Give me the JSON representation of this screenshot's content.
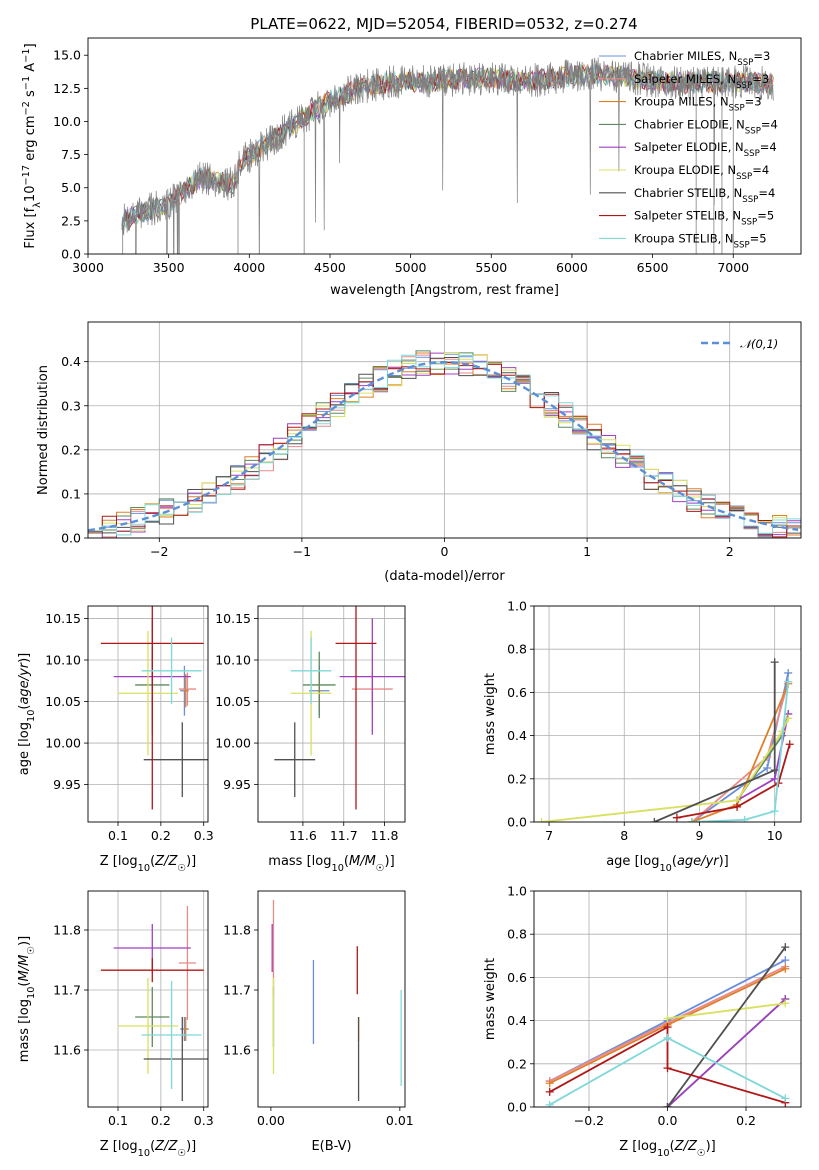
{
  "figure": {
    "title": "PLATE=0622, MJD=52054, FIBERID=0532, z=0.274"
  },
  "legend": {
    "models": [
      {
        "name": "Chabrier MILES, N_SSP=3",
        "base": "Chabrier MILES, N",
        "sub": "SSP",
        "tail": "=3",
        "color": "#6a8fd8"
      },
      {
        "name": "Salpeter MILES, N_SSP=3",
        "base": "Salpeter MILES, N",
        "sub": "SSP",
        "tail": "=3",
        "color": "#e88a8a"
      },
      {
        "name": "Kroupa MILES, N_SSP=3",
        "base": "Kroupa MILES, N",
        "sub": "SSP",
        "tail": "=3",
        "color": "#e07f2a"
      },
      {
        "name": "Chabrier ELODIE, N_SSP=4",
        "base": "Chabrier ELODIE, N",
        "sub": "SSP",
        "tail": "=4",
        "color": "#5e8a5e"
      },
      {
        "name": "Salpeter ELODIE, N_SSP=4",
        "base": "Salpeter ELODIE, N",
        "sub": "SSP",
        "tail": "=4",
        "color": "#a040c0"
      },
      {
        "name": "Kroupa ELODIE, N_SSP=4",
        "base": "Kroupa ELODIE, N",
        "sub": "SSP",
        "tail": "=4",
        "color": "#d8e060"
      },
      {
        "name": "Chabrier STELIB, N_SSP=4",
        "base": "Chabrier STELIB, N",
        "sub": "SSP",
        "tail": "=4",
        "color": "#505050"
      },
      {
        "name": "Salpeter STELIB, N_SSP=5",
        "base": "Salpeter STELIB, N",
        "sub": "SSP",
        "tail": "=5",
        "color": "#b01818"
      },
      {
        "name": "Kroupa STELIB, N_SSP=5",
        "base": "Kroupa STELIB, N",
        "sub": "SSP",
        "tail": "=5",
        "color": "#80d8d8"
      }
    ],
    "hist_legend": "𝒩(0,1)"
  },
  "chart_data": [
    {
      "id": "spectrum",
      "type": "line",
      "title": "PLATE=0622, MJD=52054, FIBERID=0532, z=0.274",
      "xlabel": "wavelength [Angstrom, rest frame]",
      "ylabel": "Flux [f_λ 10^-17 erg cm^-2 s^-1 A^-1]",
      "xlim": [
        3000,
        7420
      ],
      "ylim": [
        0,
        16.3
      ],
      "xticks": [
        3000,
        3500,
        4000,
        4500,
        5000,
        5500,
        6000,
        6500,
        7000
      ],
      "yticks": [
        0.0,
        2.5,
        5.0,
        7.5,
        10.0,
        12.5,
        15.0
      ],
      "grid": false,
      "legend_position": "upper right",
      "continuum": {
        "x": [
          3210,
          3300,
          3500,
          3700,
          3900,
          3950,
          4100,
          4300,
          4500,
          4700,
          4900,
          5100,
          5300,
          5500,
          5700,
          5900,
          6100,
          6300,
          6500,
          6700,
          6900,
          7100,
          7250
        ],
        "y": [
          2.5,
          3.0,
          3.8,
          5.8,
          5.2,
          7.0,
          8.2,
          10.0,
          11.6,
          12.6,
          13.0,
          13.0,
          13.2,
          13.3,
          13.0,
          13.3,
          13.6,
          13.4,
          13.1,
          12.9,
          13.0,
          13.0,
          12.8
        ]
      }
    },
    {
      "id": "residual-histogram",
      "type": "line",
      "xlabel": "(data-model)/error",
      "ylabel": "Normed distribution",
      "xlim": [
        -2.5,
        2.5
      ],
      "ylim": [
        0,
        0.49
      ],
      "xticks": [
        -2,
        -1,
        0,
        1,
        2
      ],
      "yticks": [
        0.0,
        0.1,
        0.2,
        0.3,
        0.4
      ],
      "grid": true,
      "legend_position": "upper right",
      "reference_curve": "normal(0,1)",
      "bin_width": 0.1
    },
    {
      "id": "age-vs-Z",
      "type": "scatter",
      "xlabel": "Z [log10(Z/Z☉)]",
      "ylabel": "age [log10(age/yr)]",
      "xlim": [
        0.03,
        0.31
      ],
      "ylim": [
        9.905,
        10.165
      ],
      "xticks": [
        0.1,
        0.2,
        0.3
      ],
      "yticks": [
        9.95,
        10.0,
        10.05,
        10.1,
        10.15
      ],
      "grid": true,
      "points": [
        {
          "model": 0,
          "x": 0.255,
          "y": 10.063,
          "xerr": 0.01,
          "yerr": 0.03
        },
        {
          "model": 1,
          "x": 0.262,
          "y": 10.065,
          "xerr": 0.02,
          "yerr": 0.02
        },
        {
          "model": 2,
          "x": 0.258,
          "y": 10.063,
          "xerr": 0.005,
          "yerr": 0.02
        },
        {
          "model": 3,
          "x": 0.18,
          "y": 10.07,
          "xerr": 0.04,
          "yerr": 0.04
        },
        {
          "model": 4,
          "x": 0.18,
          "y": 10.08,
          "xerr": 0.09,
          "yerr": 0.07
        },
        {
          "model": 5,
          "x": 0.17,
          "y": 10.06,
          "xerr": 0.07,
          "yerr": 0.075
        },
        {
          "model": 6,
          "x": 0.25,
          "y": 9.98,
          "xerr": 0.09,
          "yerr": 0.045
        },
        {
          "model": 7,
          "x": 0.18,
          "y": 10.12,
          "xerr": 0.12,
          "yerr": 0.2
        },
        {
          "model": 8,
          "x": 0.225,
          "y": 10.087,
          "xerr": 0.07,
          "yerr": 0.04
        }
      ]
    },
    {
      "id": "age-vs-mass",
      "type": "scatter",
      "xlabel": "mass [log10(M/M☉)]",
      "ylabel": "",
      "xlim": [
        11.49,
        11.85
      ],
      "ylim": [
        9.905,
        10.165
      ],
      "xticks": [
        11.6,
        11.7,
        11.8
      ],
      "yticks": [
        9.95,
        10.0,
        10.05,
        10.1,
        10.15
      ],
      "grid": true,
      "points": [
        {
          "model": 0,
          "x": 11.64,
          "y": 10.063,
          "xerr": 0.025,
          "yerr": 0.03
        },
        {
          "model": 1,
          "x": 11.77,
          "y": 10.065,
          "xerr": 0.05,
          "yerr": 0.02
        },
        {
          "model": 2,
          "x": 11.64,
          "y": 10.063,
          "xerr": 0.005,
          "yerr": 0.02
        },
        {
          "model": 3,
          "x": 11.64,
          "y": 10.07,
          "xerr": 0.04,
          "yerr": 0.04
        },
        {
          "model": 4,
          "x": 11.77,
          "y": 10.08,
          "xerr": 0.08,
          "yerr": 0.07
        },
        {
          "model": 5,
          "x": 11.62,
          "y": 10.06,
          "xerr": 0.05,
          "yerr": 0.075
        },
        {
          "model": 6,
          "x": 11.58,
          "y": 9.98,
          "xerr": 0.05,
          "yerr": 0.045
        },
        {
          "model": 7,
          "x": 11.73,
          "y": 10.12,
          "xerr": 0.05,
          "yerr": 0.2
        },
        {
          "model": 8,
          "x": 11.62,
          "y": 10.087,
          "xerr": 0.05,
          "yerr": 0.04
        }
      ]
    },
    {
      "id": "weight-vs-age",
      "type": "line",
      "xlabel": "age log10(age/yr)",
      "ylabel": "mass weight",
      "xlim": [
        6.8,
        10.35
      ],
      "ylim": [
        0,
        1.0
      ],
      "xticks": [
        7,
        8,
        9,
        10
      ],
      "yticks": [
        0.0,
        0.2,
        0.4,
        0.6,
        0.8,
        1.0
      ],
      "grid": true,
      "series": [
        {
          "model": 0,
          "x": [
            8.9,
            9.9,
            10.18
          ],
          "y": [
            0.0,
            0.25,
            0.69
          ]
        },
        {
          "model": 1,
          "x": [
            8.9,
            9.9,
            10.18
          ],
          "y": [
            0.0,
            0.3,
            0.65
          ]
        },
        {
          "model": 2,
          "x": [
            8.9,
            9.5,
            10.18
          ],
          "y": [
            0.0,
            0.08,
            0.64
          ]
        },
        {
          "model": 3,
          "x": [
            9.5,
            10.1,
            10.18
          ],
          "y": [
            0.1,
            0.4,
            0.5
          ]
        },
        {
          "model": 4,
          "x": [
            9.5,
            10.0,
            10.18
          ],
          "y": [
            0.1,
            0.2,
            0.5
          ]
        },
        {
          "model": 5,
          "x": [
            6.9,
            9.5,
            10.1,
            10.18
          ],
          "y": [
            0.0,
            0.1,
            0.42,
            0.48
          ]
        },
        {
          "model": 6,
          "x": [
            8.4,
            10.0,
            10.0
          ],
          "y": [
            0.0,
            0.24,
            0.74
          ]
        },
        {
          "model": 7,
          "x": [
            8.7,
            9.5,
            10.05,
            10.2
          ],
          "y": [
            0.02,
            0.07,
            0.18,
            0.36
          ]
        },
        {
          "model": 8,
          "x": [
            8.9,
            9.6,
            10.0,
            10.18
          ],
          "y": [
            0.0,
            0.01,
            0.05,
            0.65
          ]
        }
      ]
    },
    {
      "id": "mass-vs-Z",
      "type": "scatter",
      "xlabel": "Z [log10(Z/Z☉)]",
      "ylabel": "mass [log10(M/M☉)]",
      "xlim": [
        0.03,
        0.31
      ],
      "ylim": [
        11.505,
        11.865
      ],
      "xticks": [
        0.1,
        0.2,
        0.3
      ],
      "yticks": [
        11.6,
        11.7,
        11.8
      ],
      "grid": true,
      "points": [
        {
          "model": 0,
          "x": 0.255,
          "y": 11.635,
          "xerr": 0.01,
          "yerr": 0.02
        },
        {
          "model": 1,
          "x": 0.262,
          "y": 11.745,
          "xerr": 0.02,
          "yerr": 0.095
        },
        {
          "model": 2,
          "x": 0.258,
          "y": 11.635,
          "xerr": 0.005,
          "yerr": 0.02
        },
        {
          "model": 3,
          "x": 0.18,
          "y": 11.655,
          "xerr": 0.04,
          "yerr": 0.05
        },
        {
          "model": 4,
          "x": 0.18,
          "y": 11.77,
          "xerr": 0.09,
          "yerr": 0.04
        },
        {
          "model": 5,
          "x": 0.17,
          "y": 11.64,
          "xerr": 0.07,
          "yerr": 0.08
        },
        {
          "model": 6,
          "x": 0.25,
          "y": 11.585,
          "xerr": 0.09,
          "yerr": 0.07
        },
        {
          "model": 7,
          "x": 0.18,
          "y": 11.733,
          "xerr": 0.12,
          "yerr": 0.02
        },
        {
          "model": 8,
          "x": 0.225,
          "y": 11.625,
          "xerr": 0.07,
          "yerr": 0.09
        }
      ]
    },
    {
      "id": "mass-vs-EBV",
      "type": "scatter",
      "xlabel": "E(B-V)",
      "ylabel": "",
      "xlim": [
        -0.001,
        0.0104
      ],
      "ylim": [
        11.505,
        11.865
      ],
      "xticks": [
        0.0,
        0.01
      ],
      "yticks": [
        11.6,
        11.7,
        11.8
      ],
      "grid": false,
      "points": [
        {
          "model": 0,
          "x": 0.0033,
          "y": 11.68,
          "xerr": 0,
          "yerr": 0.07
        },
        {
          "model": 1,
          "x": 0.0002,
          "y": 11.77,
          "xerr": 0,
          "yerr": 0.08
        },
        {
          "model": 2,
          "x": 0.0068,
          "y": 11.635,
          "xerr": 0,
          "yerr": 0.02
        },
        {
          "model": 3,
          "x": 0.0002,
          "y": 11.655,
          "xerr": 0,
          "yerr": 0.05
        },
        {
          "model": 4,
          "x": 0.0001,
          "y": 11.77,
          "xerr": 0,
          "yerr": 0.04
        },
        {
          "model": 5,
          "x": 0.0002,
          "y": 11.64,
          "xerr": 0,
          "yerr": 0.08
        },
        {
          "model": 6,
          "x": 0.0068,
          "y": 11.585,
          "xerr": 0,
          "yerr": 0.07
        },
        {
          "model": 7,
          "x": 0.0067,
          "y": 11.733,
          "xerr": 0,
          "yerr": 0.04
        },
        {
          "model": 8,
          "x": 0.0101,
          "y": 11.62,
          "xerr": 0,
          "yerr": 0.08
        }
      ]
    },
    {
      "id": "weight-vs-Z",
      "type": "line",
      "xlabel": "Z [log10(Z/Z☉)]",
      "ylabel": "mass weight",
      "xlim": [
        -0.34,
        0.34
      ],
      "ylim": [
        0,
        1.0
      ],
      "xticks": [
        -0.2,
        0.0,
        0.2
      ],
      "yticks": [
        0.0,
        0.2,
        0.4,
        0.6,
        0.8,
        1.0
      ],
      "grid": true,
      "series": [
        {
          "model": 0,
          "x": [
            -0.3,
            0.0,
            0.3
          ],
          "y": [
            0.12,
            0.4,
            0.68
          ]
        },
        {
          "model": 1,
          "x": [
            -0.3,
            0.0,
            0.3
          ],
          "y": [
            0.12,
            0.39,
            0.65
          ]
        },
        {
          "model": 2,
          "x": [
            -0.3,
            0.0,
            0.3
          ],
          "y": [
            0.11,
            0.38,
            0.64
          ]
        },
        {
          "model": 3,
          "x": [
            0.0,
            0.3
          ],
          "y": [
            0.0,
            0.5
          ]
        },
        {
          "model": 4,
          "x": [
            0.0,
            0.3
          ],
          "y": [
            0.0,
            0.5
          ]
        },
        {
          "model": 5,
          "x": [
            0.0,
            0.3
          ],
          "y": [
            0.41,
            0.48
          ]
        },
        {
          "model": 6,
          "x": [
            0.0,
            0.3
          ],
          "y": [
            0.0,
            0.74
          ]
        },
        {
          "model": 7,
          "x": [
            -0.3,
            0.0,
            0.0,
            0.3
          ],
          "y": [
            0.07,
            0.37,
            0.18,
            0.02
          ]
        },
        {
          "model": 8,
          "x": [
            -0.3,
            0.0,
            0.3
          ],
          "y": [
            0.01,
            0.32,
            0.04
          ]
        }
      ]
    }
  ]
}
